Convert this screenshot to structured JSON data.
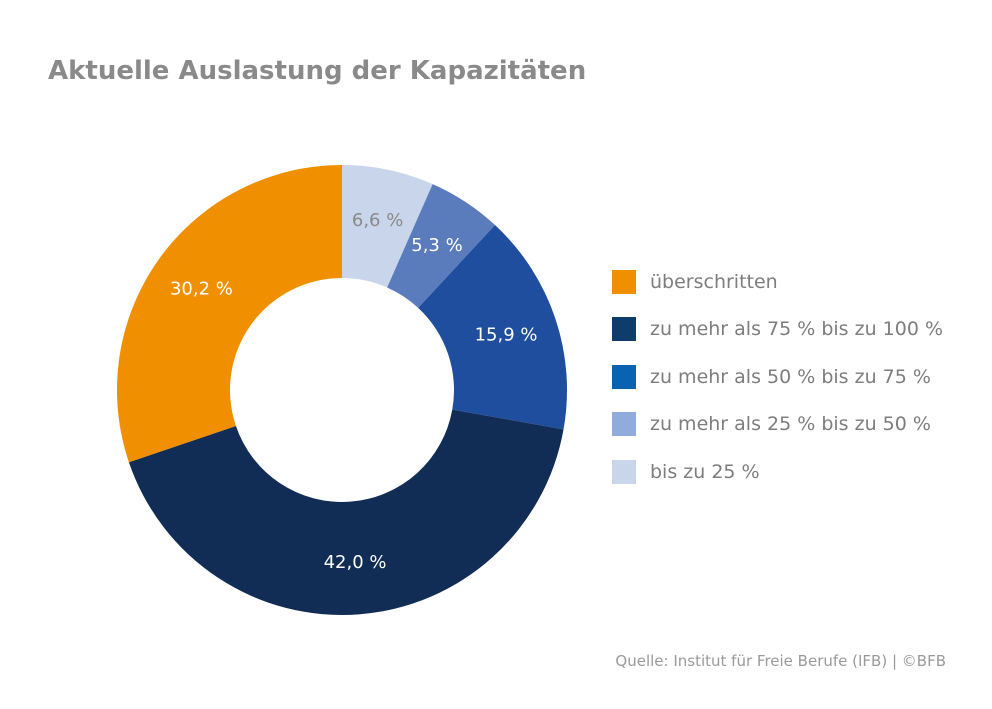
{
  "title": "Aktuelle Auslastung der Kapazitäten",
  "source": "Quelle: Institut für Freie Berufe (IFB) | ©BFB",
  "chart_data": {
    "type": "pie",
    "title": "Aktuelle Auslastung der Kapazitäten",
    "slices": [
      {
        "label": "bis zu 25 %",
        "value": 6.6,
        "display": "6,6 %",
        "color": "#c9d5ea",
        "text_color": "#8a8a8a"
      },
      {
        "label": "zu mehr als 25 % bis zu 50 %",
        "value": 5.3,
        "display": "5,3 %",
        "color": "#5a7cbd",
        "text_color": "#ffffff"
      },
      {
        "label": "zu mehr als 50 % bis zu 75 %",
        "value": 15.9,
        "display": "15,9 %",
        "color": "#1f4e9e",
        "text_color": "#ffffff"
      },
      {
        "label": "zu mehr als 75 % bis zu 100 %",
        "value": 42.0,
        "display": "42,0 %",
        "color": "#112d55",
        "text_color": "#ffffff"
      },
      {
        "label": "überschritten",
        "value": 30.2,
        "display": "30,2 %",
        "color": "#f08f00",
        "text_color": "#ffffff"
      }
    ],
    "legend": [
      {
        "label": "überschritten",
        "color": "#f08f00"
      },
      {
        "label": "zu mehr als 75 % bis zu 100 %",
        "color": "#0f3d6b"
      },
      {
        "label": "zu mehr als 50 % bis zu 75 %",
        "color": "#0a63b0"
      },
      {
        "label": "zu mehr als 25 % bis zu 50 %",
        "color": "#8facdc"
      },
      {
        "label": "bis zu 25 %",
        "color": "#c9d5ea"
      }
    ],
    "legend_position": "right"
  }
}
